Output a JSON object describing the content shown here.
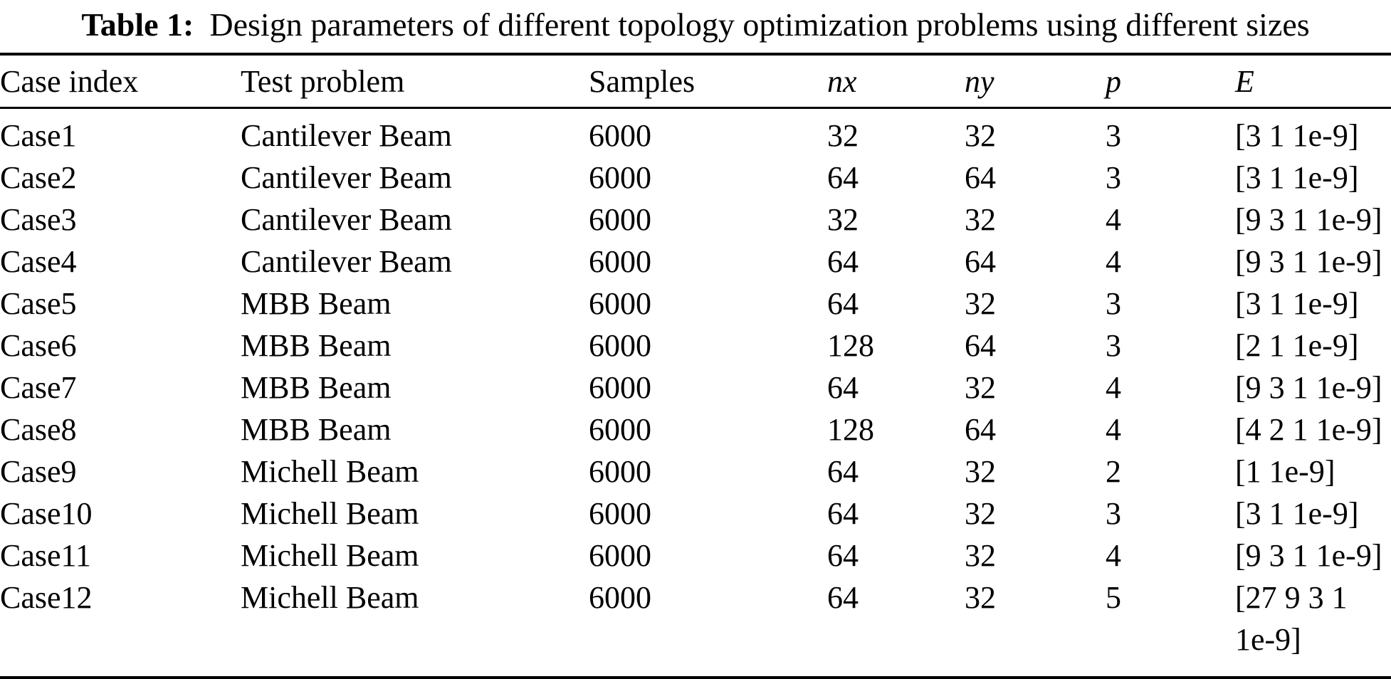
{
  "table": {
    "caption": {
      "label": "Table 1:",
      "text": "Design parameters of different topology optimization problems using different sizes"
    },
    "columns": [
      "Case index",
      "Test problem",
      "Samples",
      "nx",
      "ny",
      "p",
      "E"
    ],
    "italic_columns": [
      3,
      4,
      5,
      6
    ],
    "rows": [
      [
        "Case1",
        "Cantilever Beam",
        "6000",
        "32",
        "32",
        "3",
        "[3 1 1e-9]"
      ],
      [
        "Case2",
        "Cantilever Beam",
        "6000",
        "64",
        "64",
        "3",
        "[3 1 1e-9]"
      ],
      [
        "Case3",
        "Cantilever Beam",
        "6000",
        "32",
        "32",
        "4",
        "[9 3 1 1e-9]"
      ],
      [
        "Case4",
        "Cantilever Beam",
        "6000",
        "64",
        "64",
        "4",
        "[9 3 1 1e-9]"
      ],
      [
        "Case5",
        "MBB Beam",
        "6000",
        "64",
        "32",
        "3",
        "[3 1 1e-9]"
      ],
      [
        "Case6",
        "MBB Beam",
        "6000",
        "128",
        "64",
        "3",
        "[2 1 1e-9]"
      ],
      [
        "Case7",
        "MBB Beam",
        "6000",
        "64",
        "32",
        "4",
        "[9 3 1 1e-9]"
      ],
      [
        "Case8",
        "MBB Beam",
        "6000",
        "128",
        "64",
        "4",
        "[4 2 1 1e-9]"
      ],
      [
        "Case9",
        "Michell Beam",
        "6000",
        "64",
        "32",
        "2",
        "[1 1e-9]"
      ],
      [
        "Case10",
        "Michell Beam",
        "6000",
        "64",
        "32",
        "3",
        "[3 1 1e-9]"
      ],
      [
        "Case11",
        "Michell Beam",
        "6000",
        "64",
        "32",
        "4",
        "[9 3 1 1e-9]"
      ],
      [
        "Case12",
        "Michell Beam",
        "6000",
        "64",
        "32",
        "5",
        "[27 9 3 1 1e-9]"
      ]
    ]
  }
}
